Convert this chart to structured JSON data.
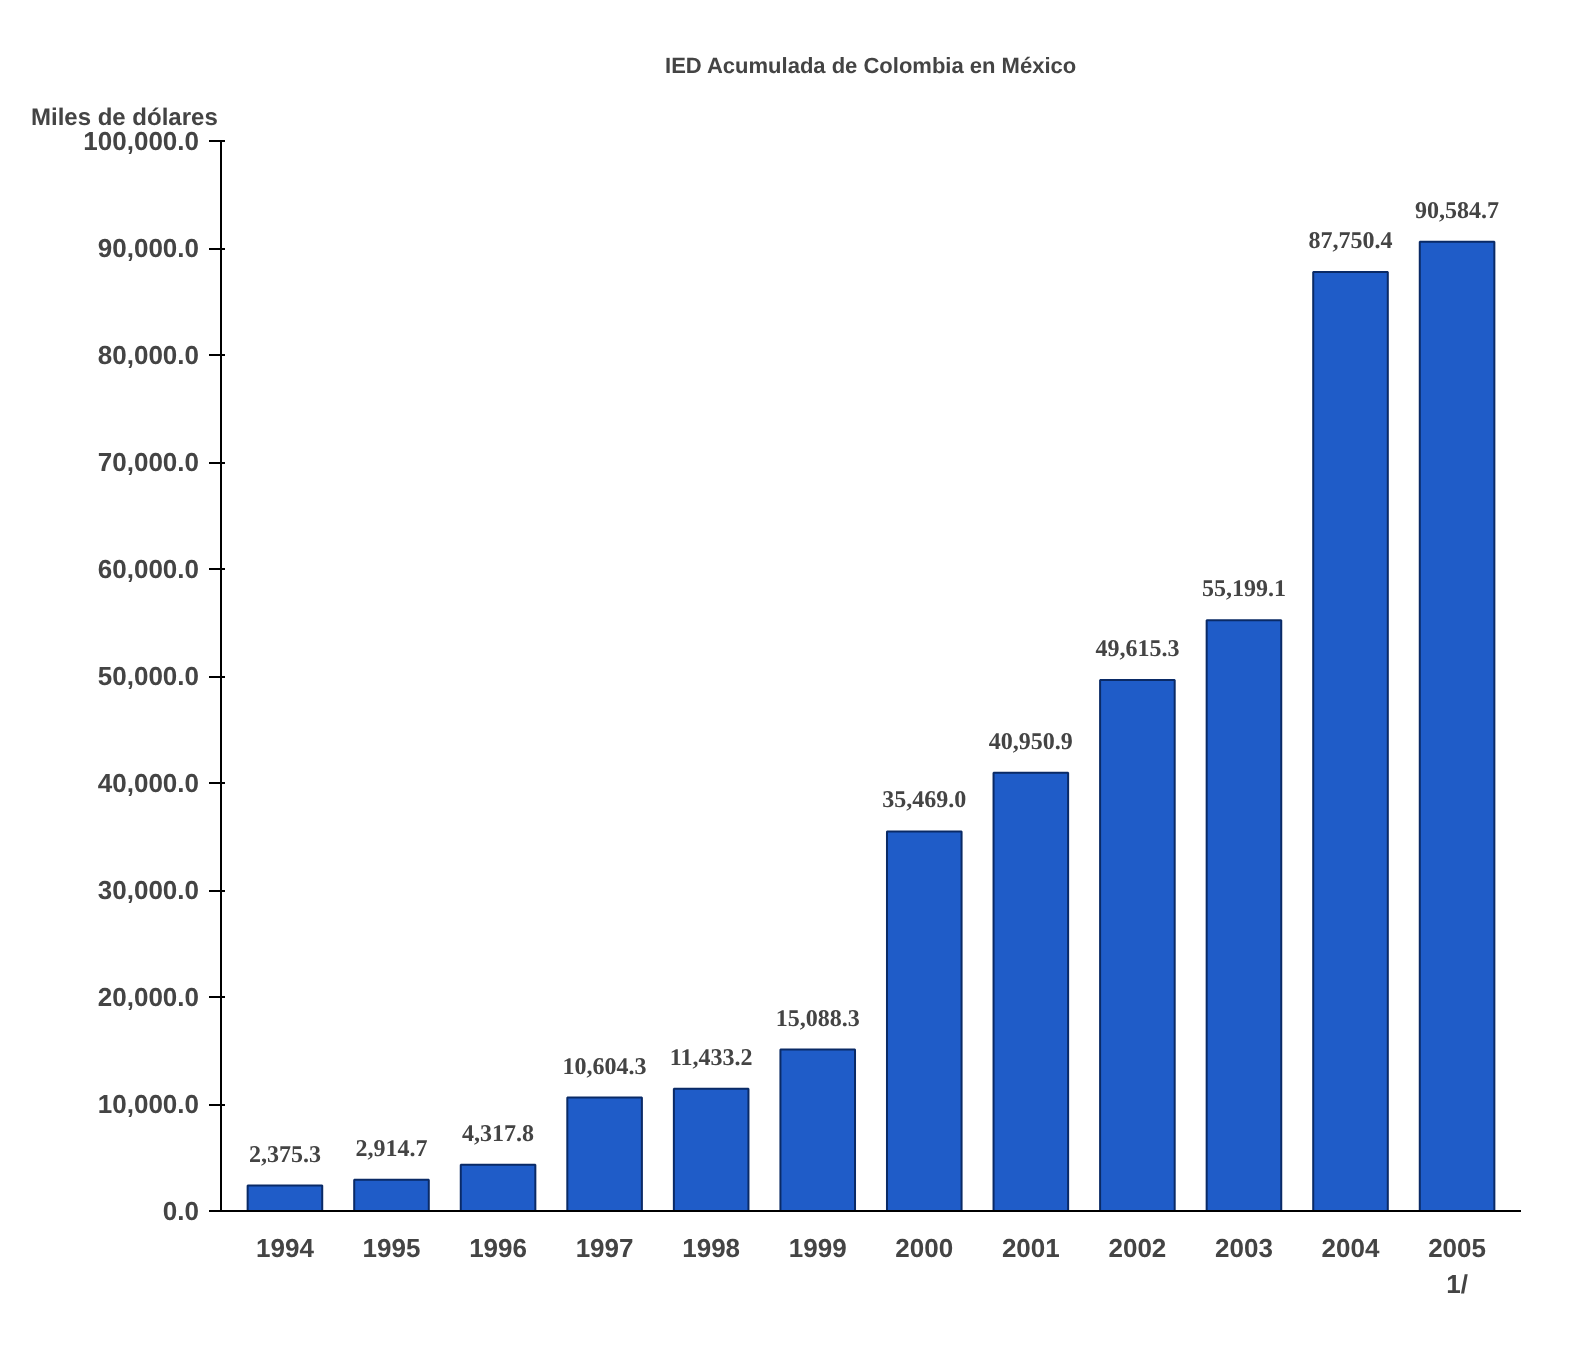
{
  "chart_data": {
    "type": "bar",
    "title": "IED Acumulada de Colombia en México",
    "ylabel": "Miles de dólares",
    "categories": [
      "1994",
      "1995",
      "1996",
      "1997",
      "1998",
      "1999",
      "2000",
      "2001",
      "2002",
      "2003",
      "2004",
      "2005\n1/"
    ],
    "values": [
      2375.3,
      2914.7,
      4317.8,
      10604.3,
      11433.2,
      15088.3,
      35469.0,
      40950.9,
      49615.3,
      55199.1,
      87750.4,
      90584.7
    ],
    "value_labels": [
      "2,375.3",
      "2,914.7",
      "4,317.8",
      "10,604.3",
      "11,433.2",
      "15,088.3",
      "35,469.0",
      "40,950.9",
      "49,615.3",
      "55,199.1",
      "87,750.4",
      "90,584.7"
    ],
    "color": "#1f5cc8",
    "ylim": [
      0,
      100000
    ],
    "yticks": [
      {
        "value": 0,
        "label": "0.0"
      },
      {
        "value": 10000,
        "label": "10,000.0"
      },
      {
        "value": 20000,
        "label": "20,000.0"
      },
      {
        "value": 30000,
        "label": "30,000.0"
      },
      {
        "value": 40000,
        "label": "40,000.0"
      },
      {
        "value": 50000,
        "label": "50,000.0"
      },
      {
        "value": 60000,
        "label": "60,000.0"
      },
      {
        "value": 70000,
        "label": "70,000.0"
      },
      {
        "value": 80000,
        "label": "80,000.0"
      },
      {
        "value": 90000,
        "label": "90,000.0"
      },
      {
        "value": 100000,
        "label": "100,000.0"
      }
    ],
    "grid": false
  }
}
